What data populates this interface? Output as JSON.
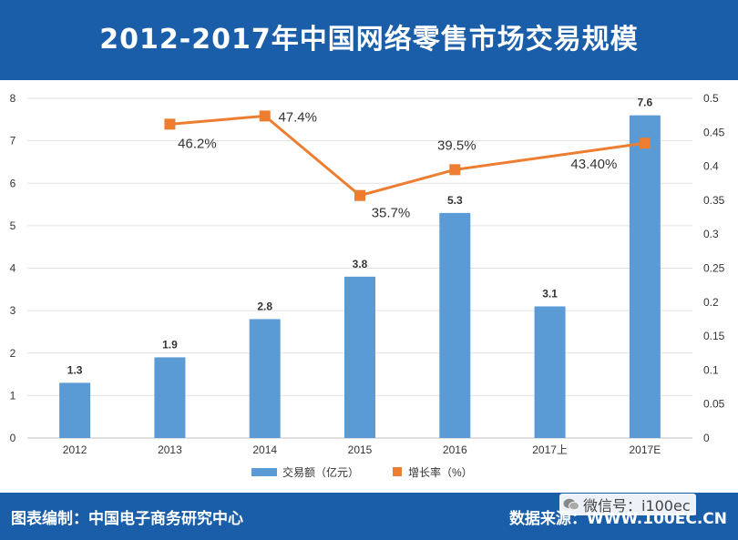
{
  "header": {
    "title": "2012-2017年中国网络零售市场交易规模"
  },
  "footer": {
    "credit": "图表编制：中国电子商务研究中心",
    "source": "数据来源：WWW.100EC.CN",
    "wechat": "微信号：i100ec"
  },
  "chart_data": {
    "type": "bar+line",
    "categories": [
      "2012",
      "2013",
      "2014",
      "2015",
      "2016",
      "2017上",
      "2017E"
    ],
    "series": [
      {
        "name": "交易额（亿元）",
        "type": "bar",
        "axis": "left",
        "values": [
          1.3,
          1.9,
          2.8,
          3.8,
          5.3,
          3.1,
          7.6
        ],
        "labels": [
          "1.3",
          "1.9",
          "2.8",
          "3.8",
          "5.3",
          "3.1",
          "7.6"
        ],
        "color": "#5b9bd5"
      },
      {
        "name": "增长率（%）",
        "type": "line",
        "axis": "right",
        "values": [
          null,
          0.462,
          0.474,
          0.357,
          0.395,
          null,
          0.434
        ],
        "labels": [
          "",
          "46.2%",
          "47.4%",
          "35.7%",
          "39.5%",
          "",
          "43.40%"
        ],
        "color": "#ed7d31"
      }
    ],
    "left_axis": {
      "min": 0,
      "max": 8,
      "ticks": [
        "0",
        "1",
        "2",
        "3",
        "4",
        "5",
        "6",
        "7",
        "8"
      ]
    },
    "right_axis": {
      "min": 0,
      "max": 0.5,
      "ticks": [
        "0",
        "0.05",
        "0.1",
        "0.15",
        "0.2",
        "0.25",
        "0.3",
        "0.35",
        "0.4",
        "0.45",
        "0.5"
      ]
    },
    "grid": true,
    "legend_position": "bottom"
  },
  "colors": {
    "header_bg": "#1a5da8",
    "bar": "#5b9bd5",
    "line": "#ed7d31"
  }
}
